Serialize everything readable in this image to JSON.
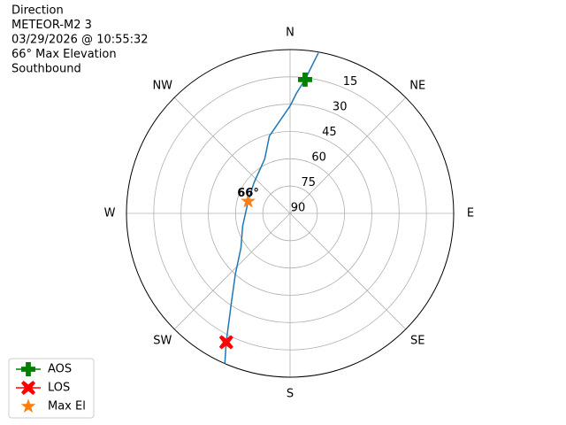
{
  "chart_data": {
    "type": "polar",
    "title_lines": [
      "Direction",
      "METEOR-M2 3",
      "03/29/2026 @ 10:55:32",
      "66° Max Elevation",
      "Southbound"
    ],
    "theta_zero": "N",
    "theta_direction": "clockwise",
    "rlim": [
      90,
      0
    ],
    "rticks": [
      15,
      30,
      45,
      60,
      75,
      90
    ],
    "thetaticks": [
      {
        "value": 0,
        "label": "N"
      },
      {
        "value": 45,
        "label": "NE"
      },
      {
        "value": 90,
        "label": "E"
      },
      {
        "value": 135,
        "label": "SE"
      },
      {
        "value": 180,
        "label": "S"
      },
      {
        "value": 225,
        "label": "SW"
      },
      {
        "value": 270,
        "label": "W"
      },
      {
        "value": 315,
        "label": "NW"
      }
    ],
    "grid": true,
    "legend": "lower left",
    "track": {
      "color": "#1f77b4",
      "theta": [
        10,
        6.4,
        3,
        0,
        345,
        335,
        310,
        286,
        255,
        235,
        222,
        213.7,
        206.4,
        203.5
      ],
      "r": [
        0.5,
        16,
        24,
        31,
        46,
        57,
        64,
        66,
        63,
        57,
        45,
        32,
        11,
        0
      ]
    },
    "series": [
      {
        "name": "AOS",
        "color": "#008000",
        "marker": "plus",
        "line": true,
        "theta": [
          6.4
        ],
        "r": [
          16
        ]
      },
      {
        "name": "LOS",
        "color": "#ff0000",
        "marker": "x",
        "line": true,
        "theta": [
          206.4
        ],
        "r": [
          11
        ]
      },
      {
        "name": "Max El",
        "color": "#ff7f0e",
        "marker": "star",
        "line": false,
        "theta": [
          286
        ],
        "r": [
          66
        ]
      }
    ],
    "annotation": {
      "text": "66°",
      "theta": 286,
      "r": 66
    }
  }
}
